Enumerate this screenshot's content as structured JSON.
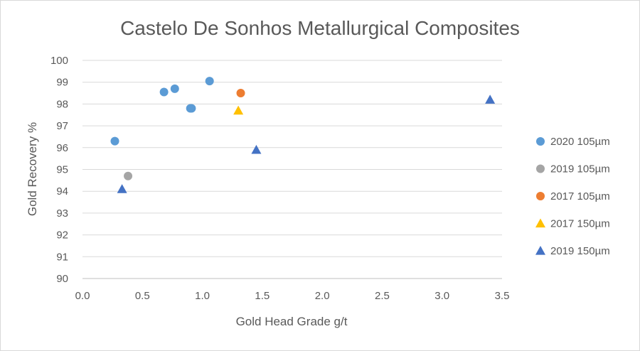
{
  "chart_data": {
    "type": "scatter",
    "title": "Castelo De Sonhos Metallurgical Composites",
    "xlabel": "Gold Head Grade g/t",
    "ylabel": "Gold Recovery %",
    "xlim": [
      0,
      3.5
    ],
    "ylim": [
      90,
      100
    ],
    "xticks": [
      "0.0",
      "0.5",
      "1.0",
      "1.5",
      "2.0",
      "2.5",
      "3.0",
      "3.5"
    ],
    "yticks": [
      "90",
      "91",
      "92",
      "93",
      "94",
      "95",
      "96",
      "97",
      "98",
      "99",
      "100"
    ],
    "grid": "horizontal",
    "legend_position": "right",
    "series": [
      {
        "name": "2020 105µm",
        "marker": "circle",
        "color": "#5b9bd5",
        "x": [
          0.27,
          0.68,
          0.77,
          0.9,
          0.91,
          1.06
        ],
        "y": [
          96.3,
          98.55,
          98.7,
          97.8,
          97.8,
          99.05
        ]
      },
      {
        "name": "2019 105µm",
        "marker": "circle",
        "color": "#a5a5a5",
        "x": [
          0.38
        ],
        "y": [
          94.7
        ]
      },
      {
        "name": "2017 105µm",
        "marker": "circle",
        "color": "#ed7d31",
        "x": [
          1.32
        ],
        "y": [
          98.5
        ]
      },
      {
        "name": "2017 150µm",
        "marker": "triangle",
        "color": "#ffc000",
        "x": [
          1.3
        ],
        "y": [
          97.7
        ]
      },
      {
        "name": "2019 150µm",
        "marker": "triangle",
        "color": "#4472c4",
        "x": [
          0.33,
          1.45,
          3.4
        ],
        "y": [
          94.1,
          95.9,
          98.2
        ]
      }
    ]
  }
}
